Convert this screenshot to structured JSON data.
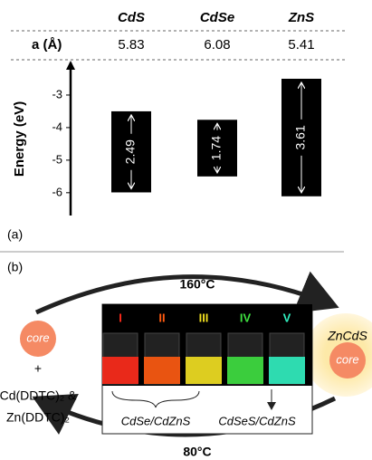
{
  "chart_data": {
    "type": "floating_bar",
    "categories": [
      "CdS",
      "CdSe",
      "ZnS"
    ],
    "row_label": "a (Å)",
    "lattice": [
      5.83,
      6.08,
      5.41
    ],
    "ylabel": "Energy (eV)",
    "top": [
      -3.5,
      -3.76,
      -2.5
    ],
    "bottom": [
      -5.99,
      -5.5,
      -6.11
    ],
    "gaps": [
      2.49,
      1.74,
      3.61
    ],
    "ylim": [
      -6.7,
      -2
    ],
    "yticks": [
      -3,
      -4,
      -5,
      -6
    ],
    "color": "#000000"
  },
  "panel_labels": [
    "(a)",
    "(b)"
  ],
  "scheme": {
    "hot": "160°C",
    "cold": "80°C",
    "core": "core",
    "plus": "+",
    "precursor1": "Cd(DDTC)₂ &",
    "precursor2": "Zn(DDTC)₂",
    "shell": "ZnCdS",
    "shell_core": "core",
    "samples": [
      "I",
      "II",
      "III",
      "IV",
      "V"
    ],
    "sample_colors": [
      "#ff2a1a",
      "#ff5a10",
      "#f2e020",
      "#3ee040",
      "#30f0c0"
    ],
    "group1": "CdSe/CdZnS",
    "group2": "CdSeS/CdZnS"
  }
}
